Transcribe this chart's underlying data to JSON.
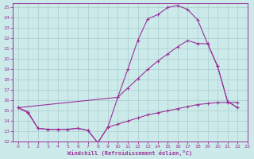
{
  "bg_color": "#cceaea",
  "grid_color": "#aacccc",
  "line_color": "#993399",
  "xlabel": "Windchill (Refroidissement éolien,°C)",
  "xlim": [
    -0.5,
    23
  ],
  "ylim": [
    12,
    25.4
  ],
  "xticks": [
    0,
    1,
    2,
    3,
    4,
    5,
    6,
    7,
    8,
    9,
    10,
    11,
    12,
    13,
    14,
    15,
    16,
    17,
    18,
    19,
    20,
    21,
    22,
    23
  ],
  "yticks": [
    12,
    13,
    14,
    15,
    16,
    17,
    18,
    19,
    20,
    21,
    22,
    23,
    24,
    25
  ],
  "curve_upper_x": [
    0,
    1,
    2,
    3,
    4,
    5,
    6,
    7,
    8,
    9,
    10,
    11,
    12,
    13,
    14,
    15,
    16,
    17,
    18,
    19,
    20,
    21,
    22
  ],
  "curve_upper_y": [
    15.3,
    14.8,
    13.3,
    13.2,
    13.2,
    13.2,
    13.3,
    13.1,
    11.9,
    13.4,
    16.3,
    19.0,
    21.8,
    23.9,
    24.3,
    25.0,
    25.2,
    24.8,
    23.8,
    21.5,
    19.3,
    15.9,
    15.3
  ],
  "curve_flat_x": [
    0,
    1,
    2,
    3,
    4,
    5,
    6,
    7,
    8,
    9,
    10,
    11,
    12,
    13,
    14,
    15,
    16,
    17,
    18,
    19,
    20,
    21,
    22
  ],
  "curve_flat_y": [
    15.3,
    14.9,
    13.3,
    13.2,
    13.2,
    13.2,
    13.3,
    13.1,
    11.9,
    13.4,
    13.7,
    14.0,
    14.3,
    14.6,
    14.8,
    15.0,
    15.2,
    15.4,
    15.6,
    15.7,
    15.8,
    15.8,
    15.8
  ],
  "curve_diag_x": [
    0,
    10,
    11,
    12,
    13,
    14,
    15,
    16,
    17,
    18,
    19,
    20,
    21,
    22
  ],
  "curve_diag_y": [
    15.3,
    16.3,
    17.2,
    18.1,
    19.0,
    19.8,
    20.5,
    21.2,
    21.8,
    21.5,
    21.5,
    19.3,
    15.9,
    15.3
  ]
}
